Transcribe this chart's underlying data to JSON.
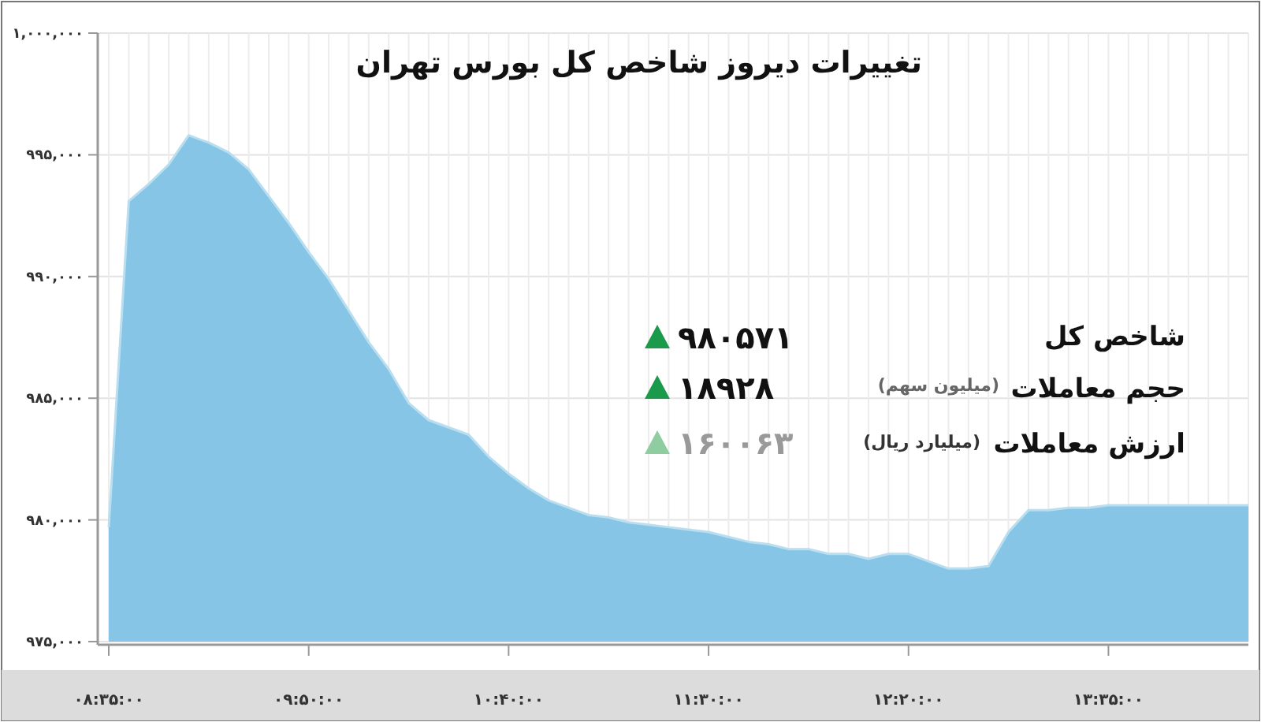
{
  "chart_data": {
    "type": "area",
    "title": "تغییرات دیروز شاخص کل بورس تهران",
    "categories": [
      "۰۸:۳۵:۰۰",
      null,
      null,
      null,
      null,
      null,
      null,
      null,
      null,
      null,
      "۰۹:۵۰:۰۰",
      null,
      null,
      null,
      null,
      null,
      null,
      null,
      null,
      null,
      "۱۰:۴۰:۰۰",
      null,
      null,
      null,
      null,
      null,
      null,
      null,
      null,
      null,
      "۱۱:۳۰:۰۰",
      null,
      null,
      null,
      null,
      null,
      null,
      null,
      null,
      null,
      "۱۲:۲۰:۰۰",
      null,
      null,
      null,
      null,
      null,
      null,
      null,
      null,
      null,
      "۱۳:۳۵:۰۰",
      null,
      null,
      null,
      null,
      null,
      null,
      null
    ],
    "values": [
      979700,
      993100,
      993800,
      994600,
      995800,
      995500,
      995100,
      994400,
      993300,
      992200,
      991000,
      989900,
      988600,
      987300,
      986200,
      984800,
      984100,
      983800,
      983500,
      982600,
      981900,
      981300,
      980800,
      980500,
      980200,
      980100,
      979900,
      979800,
      979700,
      979600,
      979500,
      979300,
      979100,
      979000,
      978800,
      978800,
      978600,
      978600,
      978400,
      978600,
      978600,
      978300,
      978000,
      978000,
      978100,
      979500,
      980400,
      980400,
      980500,
      980500,
      980600,
      980600,
      980600,
      980600,
      980600,
      980600,
      980600,
      980600
    ],
    "color": "#86c5e5",
    "ylim": [
      975000,
      1000000
    ],
    "yticks": [
      {
        "value": 975000,
        "label": "۹۷۵,۰۰۰"
      },
      {
        "value": 980000,
        "label": "۹۸۰,۰۰۰"
      },
      {
        "value": 985000,
        "label": "۹۸۵,۰۰۰"
      },
      {
        "value": 990000,
        "label": "۹۹۰,۰۰۰"
      },
      {
        "value": 995000,
        "label": "۹۹۵,۰۰۰"
      },
      {
        "value": 1000000,
        "label": "۱,۰۰۰,۰۰۰"
      }
    ],
    "grid": true,
    "annotations": [
      "شاخص کل",
      "۹۸۰۵۷۱",
      "حجم معاملات",
      "(میلیون سهم)",
      "۱۸۹۲۸",
      "ارزش معاملات",
      "(میلیارد ریال)",
      "۱۶۰۰۶۳"
    ]
  }
}
